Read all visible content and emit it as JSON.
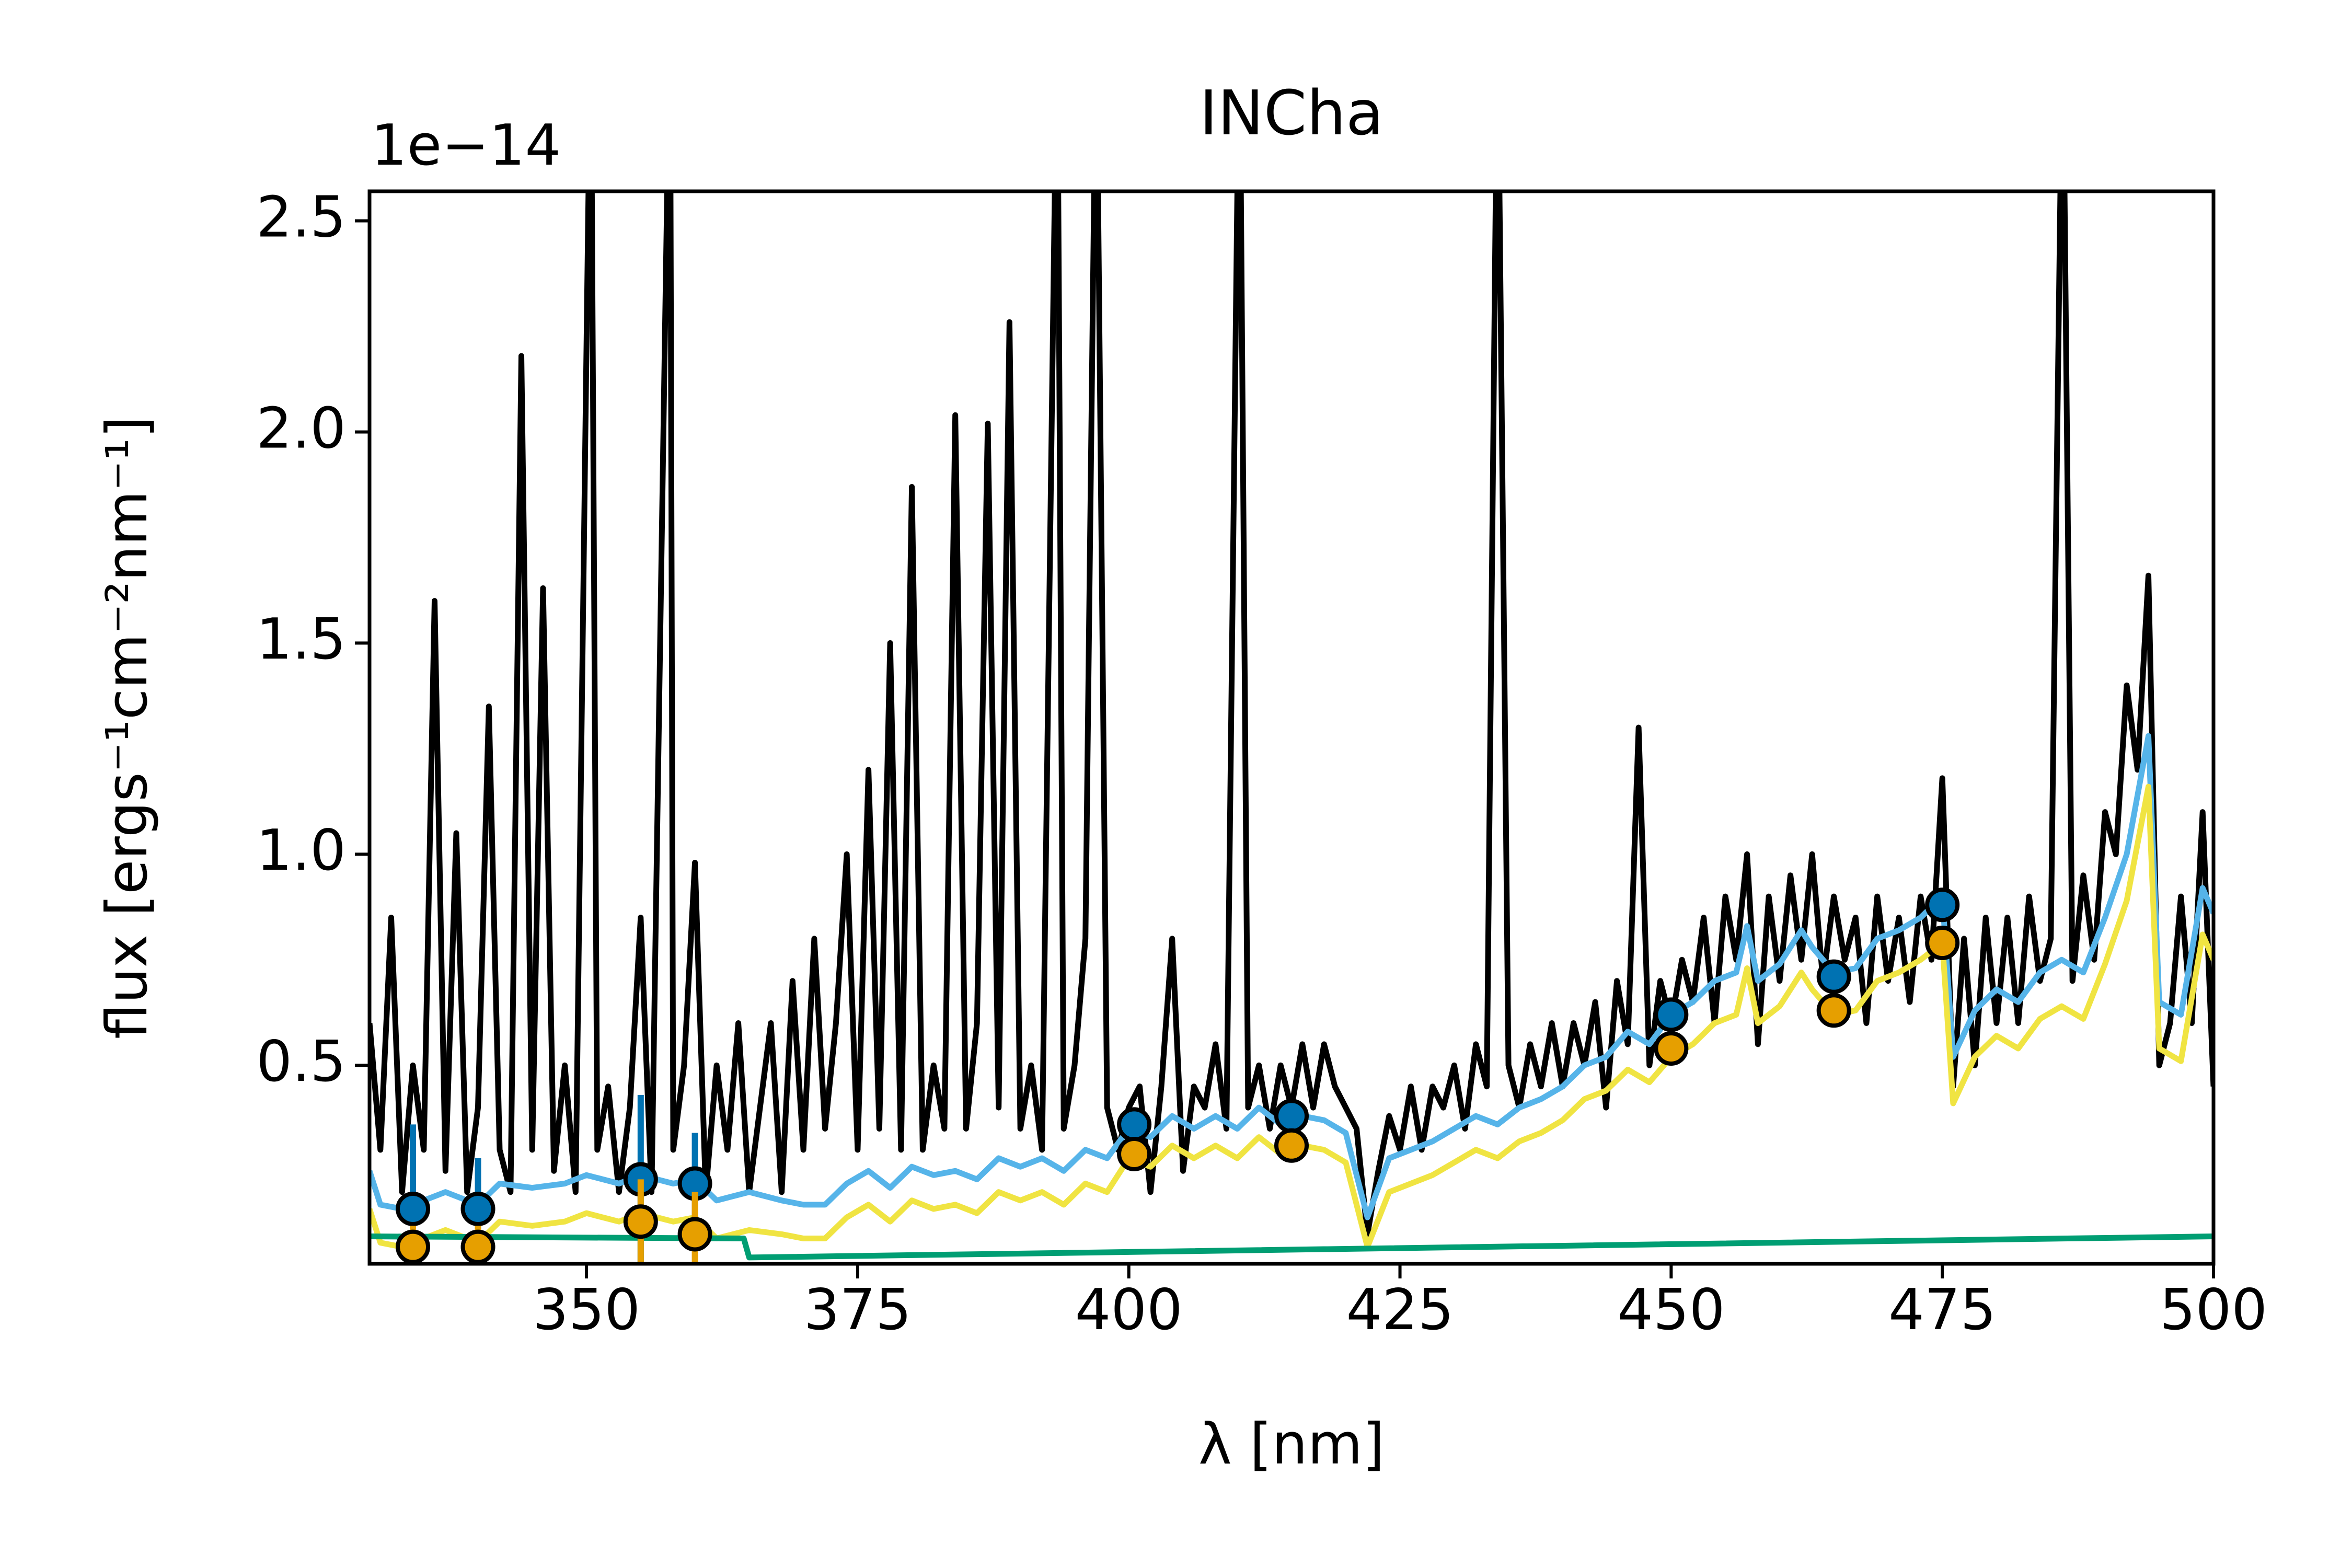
{
  "chart_data": {
    "type": "line",
    "title": "INCha",
    "x_label": "λ [nm]",
    "y_label": "flux [ergs⁻¹cm⁻²nm⁻¹]",
    "y_offset_label": "1e−14",
    "xlim": [
      330,
      500
    ],
    "ylim": [
      0.03,
      2.57
    ],
    "xticks": [
      350,
      375,
      400,
      425,
      450,
      475,
      500
    ],
    "yticks": [
      0.5,
      {
        "value": 1,
        "label": "1.0"
      },
      1.5,
      {
        "value": 2,
        "label": "2.0"
      },
      2.5
    ],
    "series": [
      {
        "type": "line",
        "color": "#000000",
        "x": [
          330,
          331,
          332,
          333,
          334,
          335,
          336,
          337,
          338,
          339,
          340,
          341,
          342,
          343,
          344,
          345,
          346,
          347,
          348,
          349,
          350.4,
          351,
          352,
          353,
          354,
          355,
          356,
          357.7,
          358,
          359,
          360,
          361,
          362,
          363,
          364,
          365,
          366,
          367,
          368,
          369,
          370,
          371,
          372,
          373,
          374,
          375,
          376,
          377,
          378,
          379,
          380,
          381,
          382,
          383,
          384,
          385,
          386,
          387,
          388,
          389,
          390,
          391,
          392,
          393.4,
          394,
          395,
          396,
          397,
          398,
          399,
          400,
          401,
          402,
          403,
          404,
          405,
          406,
          407,
          408,
          409,
          410.2,
          411,
          412,
          413,
          414,
          415,
          416,
          417,
          418,
          419,
          420,
          421,
          422,
          423,
          424,
          425,
          426,
          427,
          428,
          429,
          430,
          431,
          432,
          433,
          434,
          435,
          436,
          437,
          438,
          439,
          440,
          441,
          442,
          443,
          444,
          445,
          446,
          447,
          448,
          449,
          450,
          451,
          452,
          453,
          454,
          455,
          456,
          457,
          458,
          459,
          460,
          461,
          462,
          463,
          464,
          465,
          466,
          467,
          468,
          469,
          470,
          471,
          472,
          473,
          474,
          475,
          476,
          477,
          478,
          479,
          480,
          481,
          482,
          483,
          484,
          485,
          486.1,
          487,
          488,
          489,
          490,
          491,
          492,
          493,
          494,
          495,
          496,
          497,
          498,
          499,
          500
        ],
        "values": [
          0.6,
          0.3,
          0.85,
          0.2,
          0.5,
          0.3,
          1.6,
          0.25,
          1.05,
          0.2,
          0.4,
          1.35,
          0.3,
          0.2,
          2.18,
          0.3,
          1.63,
          0.25,
          0.5,
          0.2,
          3.0,
          0.3,
          0.45,
          0.2,
          0.4,
          0.85,
          0.2,
          3.0,
          0.3,
          0.5,
          0.98,
          0.2,
          0.5,
          0.3,
          0.6,
          0.2,
          0.4,
          0.6,
          0.2,
          0.7,
          0.3,
          0.8,
          0.35,
          0.6,
          1.0,
          0.3,
          1.2,
          0.35,
          1.5,
          0.3,
          1.87,
          0.3,
          0.5,
          0.35,
          2.04,
          0.35,
          0.6,
          2.02,
          0.4,
          2.26,
          0.35,
          0.5,
          0.3,
          3.0,
          0.35,
          0.5,
          0.8,
          3.0,
          0.4,
          0.3,
          0.4,
          0.45,
          0.2,
          0.45,
          0.8,
          0.25,
          0.45,
          0.4,
          0.55,
          0.35,
          3.0,
          0.4,
          0.5,
          0.35,
          0.5,
          0.4,
          0.55,
          0.4,
          0.55,
          0.45,
          0.4,
          0.35,
          0.1,
          0.25,
          0.38,
          0.3,
          0.45,
          0.3,
          0.45,
          0.4,
          0.5,
          0.35,
          0.55,
          0.45,
          3.0,
          0.5,
          0.4,
          0.55,
          0.45,
          0.6,
          0.45,
          0.6,
          0.5,
          0.65,
          0.4,
          0.7,
          0.55,
          1.3,
          0.5,
          0.7,
          0.6,
          0.75,
          0.65,
          0.85,
          0.6,
          0.9,
          0.75,
          1.0,
          0.55,
          0.9,
          0.7,
          0.95,
          0.75,
          1.0,
          0.7,
          0.9,
          0.75,
          0.85,
          0.6,
          0.9,
          0.7,
          0.85,
          0.65,
          0.9,
          0.75,
          1.18,
          0.45,
          0.8,
          0.5,
          0.85,
          0.6,
          0.85,
          0.6,
          0.9,
          0.7,
          0.8,
          3.0,
          0.7,
          0.95,
          0.75,
          1.1,
          1.0,
          1.4,
          1.2,
          1.66,
          0.5,
          0.6,
          0.9,
          0.6,
          1.1,
          0.45
        ]
      },
      {
        "type": "line",
        "color": "#56b4e9",
        "x": [
          330,
          331,
          333,
          335,
          337,
          340,
          342,
          345,
          348,
          350,
          353,
          355,
          358,
          360,
          362,
          365,
          368,
          370,
          372,
          374,
          376,
          378,
          380,
          382,
          384,
          386,
          388,
          390,
          392,
          394,
          396,
          398,
          400,
          402,
          404,
          406,
          408,
          410,
          412,
          414,
          416,
          418,
          420,
          422,
          424,
          426,
          428,
          430,
          432,
          434,
          436,
          438,
          440,
          442,
          444,
          446,
          448,
          450,
          452,
          454,
          456,
          457,
          458,
          460,
          462,
          463,
          465,
          467,
          469,
          471,
          473,
          475,
          476,
          478,
          480,
          482,
          484,
          486,
          488,
          490,
          492,
          494,
          495,
          497,
          499,
          500
        ],
        "values": [
          0.25,
          0.17,
          0.16,
          0.18,
          0.2,
          0.17,
          0.22,
          0.21,
          0.22,
          0.24,
          0.22,
          0.24,
          0.22,
          0.23,
          0.18,
          0.2,
          0.18,
          0.17,
          0.17,
          0.22,
          0.25,
          0.21,
          0.26,
          0.24,
          0.25,
          0.23,
          0.28,
          0.26,
          0.28,
          0.25,
          0.3,
          0.28,
          0.35,
          0.33,
          0.38,
          0.35,
          0.38,
          0.35,
          0.4,
          0.36,
          0.38,
          0.37,
          0.34,
          0.14,
          0.28,
          0.3,
          0.32,
          0.35,
          0.38,
          0.36,
          0.4,
          0.42,
          0.45,
          0.5,
          0.52,
          0.58,
          0.55,
          0.62,
          0.65,
          0.7,
          0.72,
          0.83,
          0.7,
          0.74,
          0.82,
          0.78,
          0.72,
          0.73,
          0.8,
          0.82,
          0.85,
          0.9,
          0.52,
          0.63,
          0.68,
          0.65,
          0.72,
          0.75,
          0.72,
          0.85,
          1.0,
          1.28,
          0.65,
          0.62,
          0.92,
          0.86
        ]
      },
      {
        "type": "line",
        "color": "#f0e442",
        "x": [
          330,
          331,
          333,
          335,
          337,
          340,
          342,
          345,
          348,
          350,
          353,
          355,
          358,
          360,
          362,
          365,
          368,
          370,
          372,
          374,
          376,
          378,
          380,
          382,
          384,
          386,
          388,
          390,
          392,
          394,
          396,
          398,
          400,
          402,
          404,
          406,
          408,
          410,
          412,
          414,
          416,
          418,
          420,
          422,
          424,
          426,
          428,
          430,
          432,
          434,
          436,
          438,
          440,
          442,
          444,
          446,
          448,
          450,
          452,
          454,
          456,
          457,
          458,
          460,
          462,
          463,
          465,
          467,
          469,
          471,
          473,
          475,
          476,
          478,
          480,
          482,
          484,
          486,
          488,
          490,
          492,
          494,
          495,
          497,
          499,
          500
        ],
        "values": [
          0.16,
          0.08,
          0.07,
          0.09,
          0.11,
          0.08,
          0.13,
          0.12,
          0.13,
          0.15,
          0.13,
          0.15,
          0.13,
          0.14,
          0.09,
          0.11,
          0.1,
          0.09,
          0.09,
          0.14,
          0.17,
          0.13,
          0.18,
          0.16,
          0.17,
          0.15,
          0.2,
          0.18,
          0.2,
          0.17,
          0.22,
          0.2,
          0.28,
          0.26,
          0.31,
          0.28,
          0.31,
          0.28,
          0.33,
          0.29,
          0.31,
          0.3,
          0.27,
          0.07,
          0.2,
          0.22,
          0.24,
          0.27,
          0.3,
          0.28,
          0.32,
          0.34,
          0.37,
          0.42,
          0.44,
          0.49,
          0.46,
          0.52,
          0.55,
          0.6,
          0.62,
          0.73,
          0.6,
          0.64,
          0.72,
          0.68,
          0.62,
          0.63,
          0.7,
          0.72,
          0.75,
          0.79,
          0.41,
          0.52,
          0.57,
          0.54,
          0.61,
          0.64,
          0.61,
          0.74,
          0.89,
          1.16,
          0.54,
          0.51,
          0.81,
          0.75
        ]
      },
      {
        "type": "line",
        "color": "#009e73",
        "x": [
          330,
          364.5,
          365,
          500
        ],
        "values": [
          0.095,
          0.09,
          0.045,
          0.095
        ]
      },
      {
        "type": "errorbar",
        "color": "#0072b2",
        "x": [
          334,
          340,
          355,
          360,
          400.5,
          415,
          450,
          465,
          475
        ],
        "values": [
          0.16,
          0.16,
          0.23,
          0.22,
          0.36,
          0.38,
          0.62,
          0.71,
          0.88
        ],
        "errors": [
          0.2,
          0.12,
          0.2,
          0.12,
          0.03,
          0.04,
          0.03,
          0.03,
          0.04
        ]
      },
      {
        "type": "errorbar",
        "color": "#e69f00",
        "x": [
          334,
          340,
          355,
          360,
          400.5,
          415,
          450,
          465,
          475
        ],
        "values": [
          0.07,
          0.07,
          0.13,
          0.1,
          0.29,
          0.31,
          0.54,
          0.63,
          0.79
        ],
        "errors": [
          0.05,
          0.05,
          0.1,
          0.1,
          0.03,
          0.04,
          0.03,
          0.03,
          0.04
        ]
      }
    ]
  }
}
